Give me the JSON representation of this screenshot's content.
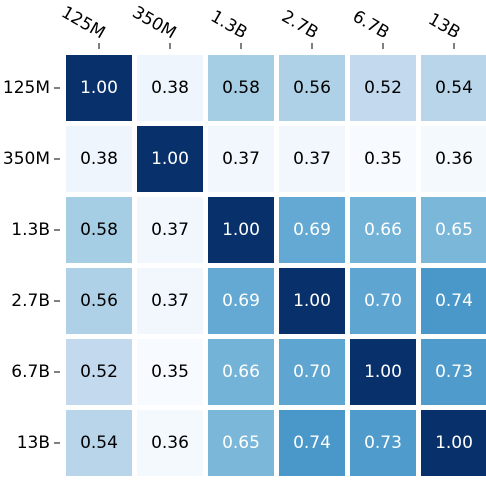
{
  "chart_data": {
    "type": "heatmap",
    "title": "",
    "xlabel": "",
    "ylabel": "",
    "x_categories": [
      "125M",
      "350M",
      "1.3B",
      "2.7B",
      "6.7B",
      "13B"
    ],
    "y_categories": [
      "125M",
      "350M",
      "1.3B",
      "2.7B",
      "6.7B",
      "13B"
    ],
    "values": [
      [
        1.0,
        0.38,
        0.58,
        0.56,
        0.52,
        0.54
      ],
      [
        0.38,
        1.0,
        0.37,
        0.37,
        0.35,
        0.36
      ],
      [
        0.58,
        0.37,
        1.0,
        0.69,
        0.66,
        0.65
      ],
      [
        0.56,
        0.37,
        0.69,
        1.0,
        0.7,
        0.74
      ],
      [
        0.52,
        0.35,
        0.66,
        0.7,
        1.0,
        0.73
      ],
      [
        0.54,
        0.36,
        0.65,
        0.74,
        0.73,
        1.0
      ]
    ],
    "value_format": "2 decimals",
    "colormap": "Blues",
    "value_range": [
      0.35,
      1.0
    ],
    "colorbar": false,
    "x_tick_position": "top",
    "x_tick_rotation": "rotated clockwise",
    "grid": false,
    "colors": {
      "low": "#f7fbff",
      "high": "#08306b",
      "light_text": "#ffffff",
      "dark_text": "#000000",
      "background": "#ffffff"
    }
  }
}
